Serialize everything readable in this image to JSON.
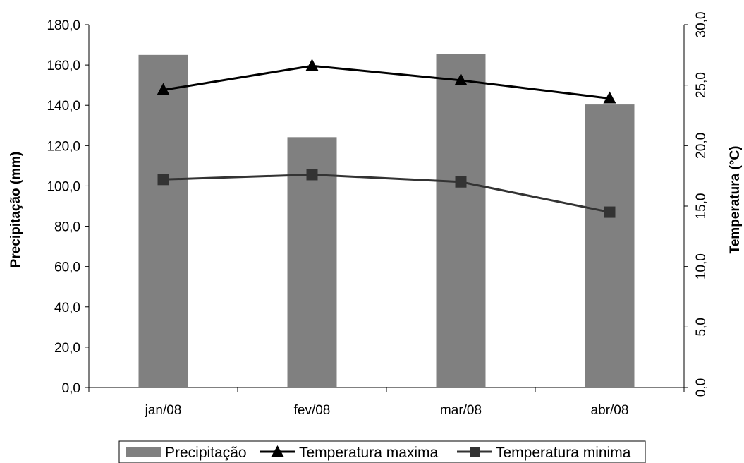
{
  "chart_data": {
    "type": "bar",
    "categories": [
      "jan/08",
      "fev/08",
      "mar/08",
      "abr/08"
    ],
    "ylabel": "Precipitação (mm)",
    "y2label": "Temperatura (°C)",
    "ylim": [
      0,
      180
    ],
    "y2lim": [
      0,
      30
    ],
    "yticks": [
      "0,0",
      "20,0",
      "40,0",
      "60,0",
      "80,0",
      "100,0",
      "120,0",
      "140,0",
      "160,0",
      "180,0"
    ],
    "y2ticks": [
      "0,0",
      "5,0",
      "10,0",
      "15,0",
      "20,0",
      "25,0",
      "30,0"
    ],
    "series": [
      {
        "name": "Precipitação",
        "type": "bar",
        "axis": "left",
        "color": "#808080",
        "values": [
          165.0,
          124.2,
          165.5,
          140.4
        ]
      },
      {
        "name": "Temperatura maxima",
        "type": "line",
        "axis": "right",
        "marker": "triangle",
        "color": "#000000",
        "values": [
          24.6,
          26.6,
          25.4,
          23.9
        ]
      },
      {
        "name": "Temperatura minima",
        "type": "line",
        "axis": "right",
        "marker": "square",
        "color": "#333333",
        "values": [
          17.2,
          17.6,
          17.0,
          14.5
        ]
      }
    ],
    "legend_position": "bottom",
    "grid": false
  }
}
